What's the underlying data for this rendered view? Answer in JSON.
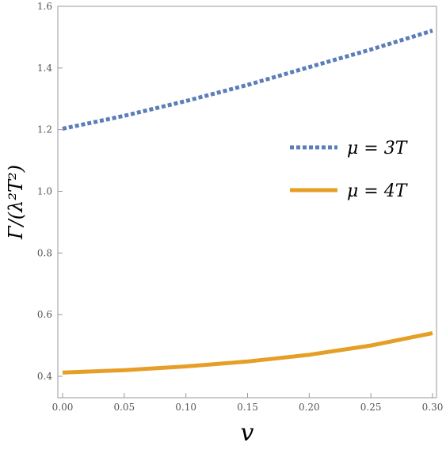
{
  "chart_data": {
    "type": "line",
    "xlabel": "v",
    "ylabel": "Γ/(λ²T²)",
    "xlim": [
      0.0,
      0.3
    ],
    "ylim": [
      0.4,
      1.6
    ],
    "xticks": [
      "0.00",
      "0.05",
      "0.10",
      "0.15",
      "0.20",
      "0.25",
      "0.30"
    ],
    "yticks": [
      "0.4",
      "0.6",
      "0.8",
      "1.0",
      "1.2",
      "1.4",
      "1.6"
    ],
    "legend_position": "middle-right",
    "grid": false,
    "series": [
      {
        "name": "μ = 3T",
        "style": "dotted",
        "color": "#5b7db8",
        "x": [
          0.0,
          0.05,
          0.1,
          0.15,
          0.2,
          0.25,
          0.3
        ],
        "y": [
          1.203,
          1.245,
          1.293,
          1.345,
          1.403,
          1.46,
          1.521
        ]
      },
      {
        "name": "μ = 4T",
        "style": "solid",
        "color": "#e69f26",
        "x": [
          0.0,
          0.05,
          0.1,
          0.15,
          0.2,
          0.25,
          0.3
        ],
        "y": [
          0.412,
          0.42,
          0.432,
          0.448,
          0.47,
          0.5,
          0.54
        ]
      }
    ]
  }
}
